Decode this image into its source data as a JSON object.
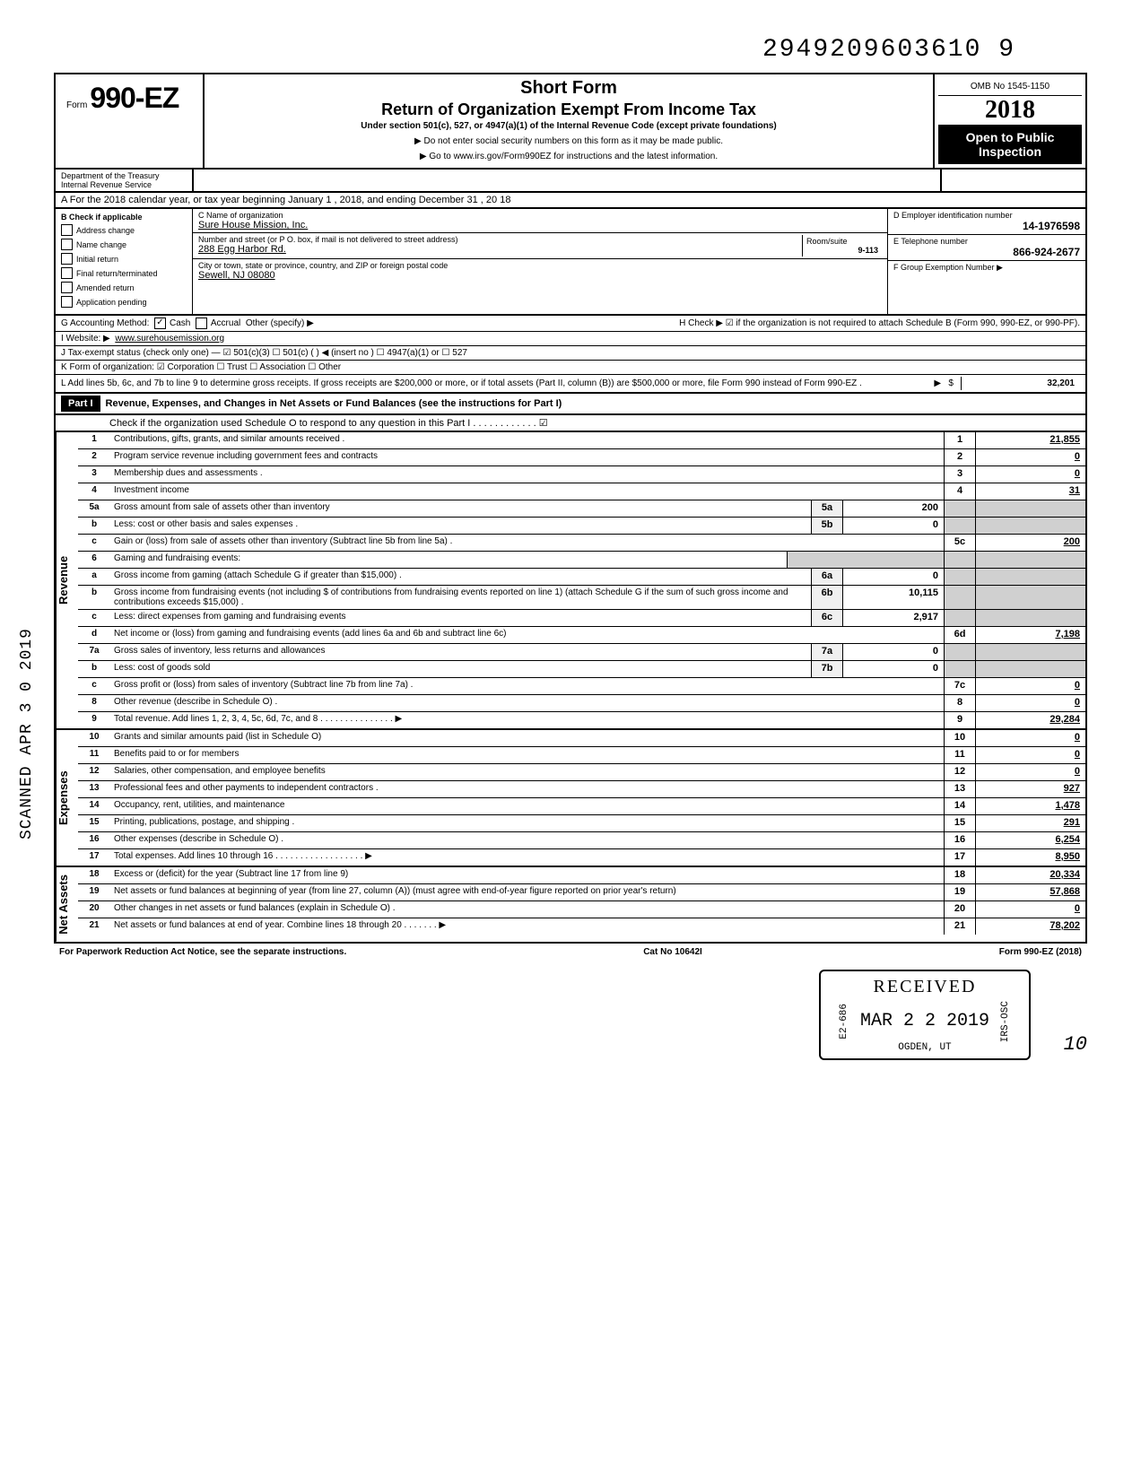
{
  "page_number": "2949209603610  9",
  "form": {
    "prefix": "Form",
    "number": "990-EZ",
    "short_form": "Short Form",
    "title": "Return of Organization Exempt From Income Tax",
    "subtitle": "Under section 501(c), 527, or 4947(a)(1) of the Internal Revenue Code (except private foundations)",
    "note1": "▶ Do not enter social security numbers on this form as it may be made public.",
    "note2": "▶ Go to www.irs.gov/Form990EZ for instructions and the latest information.",
    "omb": "OMB No 1545-1150",
    "year": "2018",
    "public": "Open to Public Inspection",
    "dept": "Department of the Treasury Internal Revenue Service"
  },
  "section_a": "A  For the 2018 calendar year, or tax year beginning           January 1          , 2018, and ending          December 31          , 20   18",
  "col_b": {
    "header": "B  Check if applicable",
    "items": [
      "Address change",
      "Name change",
      "Initial return",
      "Final return/terminated",
      "Amended return",
      "Application pending"
    ]
  },
  "col_c": {
    "name_label": "C  Name of organization",
    "name": "Sure House Mission, Inc.",
    "addr_label": "Number and street (or P O. box, if mail is not delivered to street address)",
    "addr": "288 Egg Harbor Rd.",
    "room_label": "Room/suite",
    "room": "9-113",
    "city_label": "City or town, state or province, country, and ZIP or foreign postal code",
    "city": "Sewell, NJ 08080"
  },
  "col_d": {
    "ein_label": "D Employer identification number",
    "ein": "14-1976598",
    "phone_label": "E  Telephone number",
    "phone": "866-924-2677",
    "group_label": "F  Group Exemption Number ▶"
  },
  "meta": {
    "g": "G  Accounting Method:",
    "g_cash": "Cash",
    "g_accrual": "Accrual",
    "g_other": "Other (specify) ▶",
    "h": "H  Check ▶ ☑ if the organization is not required to attach Schedule B (Form 990, 990-EZ, or 990-PF).",
    "i": "I  Website: ▶",
    "i_val": "www.surehousemission.org",
    "j": "J  Tax-exempt status (check only one) — ☑ 501(c)(3)  ☐ 501(c) (   ) ◀ (insert no )  ☐ 4947(a)(1) or  ☐ 527",
    "k": "K  Form of organization:  ☑ Corporation   ☐ Trust   ☐ Association   ☐ Other",
    "l": "L  Add lines 5b, 6c, and 7b to line 9 to determine gross receipts. If gross receipts are $200,000 or more, or if total assets (Part II, column (B)) are $500,000 or more, file Form 990 instead of Form 990-EZ .",
    "l_amount": "32,201"
  },
  "part1": {
    "label": "Part I",
    "title": "Revenue, Expenses, and Changes in Net Assets or Fund Balances (see the instructions for Part I)",
    "check": "Check if the organization used Schedule O to respond to any question in this Part I . . . . . . . . . . . .  ☑"
  },
  "sections": {
    "revenue": "Revenue",
    "expenses": "Expenses",
    "net_assets": "Net Assets"
  },
  "lines": {
    "1": {
      "n": "1",
      "d": "Contributions, gifts, grants, and similar amounts received .",
      "box": "1",
      "val": "21,855"
    },
    "2": {
      "n": "2",
      "d": "Program service revenue including government fees and contracts",
      "box": "2",
      "val": "0"
    },
    "3": {
      "n": "3",
      "d": "Membership dues and assessments .",
      "box": "3",
      "val": "0"
    },
    "4": {
      "n": "4",
      "d": "Investment income",
      "box": "4",
      "val": "31"
    },
    "5a": {
      "n": "5a",
      "d": "Gross amount from sale of assets other than inventory",
      "sub": "5a",
      "subval": "200"
    },
    "5b": {
      "n": "b",
      "d": "Less: cost or other basis and sales expenses .",
      "sub": "5b",
      "subval": "0"
    },
    "5c": {
      "n": "c",
      "d": "Gain or (loss) from sale of assets other than inventory (Subtract line 5b from line 5a) .",
      "box": "5c",
      "val": "200"
    },
    "6": {
      "n": "6",
      "d": "Gaming and fundraising events:"
    },
    "6a": {
      "n": "a",
      "d": "Gross income from gaming (attach Schedule G if greater than $15,000) .",
      "sub": "6a",
      "subval": "0"
    },
    "6b": {
      "n": "b",
      "d": "Gross income from fundraising events (not including  $             of contributions from fundraising events reported on line 1) (attach Schedule G if the sum of such gross income and contributions exceeds $15,000) .",
      "sub": "6b",
      "subval": "10,115"
    },
    "6c": {
      "n": "c",
      "d": "Less: direct expenses from gaming and fundraising events",
      "sub": "6c",
      "subval": "2,917"
    },
    "6d": {
      "n": "d",
      "d": "Net income or (loss) from gaming and fundraising events (add lines 6a and 6b and subtract line 6c)",
      "box": "6d",
      "val": "7,198"
    },
    "7a": {
      "n": "7a",
      "d": "Gross sales of inventory, less returns and allowances",
      "sub": "7a",
      "subval": "0"
    },
    "7b": {
      "n": "b",
      "d": "Less: cost of goods sold",
      "sub": "7b",
      "subval": "0"
    },
    "7c": {
      "n": "c",
      "d": "Gross profit or (loss) from sales of inventory (Subtract line 7b from line 7a) .",
      "box": "7c",
      "val": "0"
    },
    "8": {
      "n": "8",
      "d": "Other revenue (describe in Schedule O) .",
      "box": "8",
      "val": "0"
    },
    "9": {
      "n": "9",
      "d": "Total revenue. Add lines 1, 2, 3, 4, 5c, 6d, 7c, and 8  . . . . . . . . . . . . . . . ▶",
      "box": "9",
      "val": "29,284"
    },
    "10": {
      "n": "10",
      "d": "Grants and similar amounts paid (list in Schedule O)",
      "box": "10",
      "val": "0"
    },
    "11": {
      "n": "11",
      "d": "Benefits paid to or for members",
      "box": "11",
      "val": "0"
    },
    "12": {
      "n": "12",
      "d": "Salaries, other compensation, and employee benefits",
      "box": "12",
      "val": "0"
    },
    "13": {
      "n": "13",
      "d": "Professional fees and other payments to independent contractors .",
      "box": "13",
      "val": "927"
    },
    "14": {
      "n": "14",
      "d": "Occupancy, rent, utilities, and maintenance",
      "box": "14",
      "val": "1,478"
    },
    "15": {
      "n": "15",
      "d": "Printing, publications, postage, and shipping .",
      "box": "15",
      "val": "291"
    },
    "16": {
      "n": "16",
      "d": "Other expenses (describe in Schedule O) .",
      "box": "16",
      "val": "6,254"
    },
    "17": {
      "n": "17",
      "d": "Total expenses. Add lines 10 through 16  . . . . . . . . . . . . . . . . . . ▶",
      "box": "17",
      "val": "8,950"
    },
    "18": {
      "n": "18",
      "d": "Excess or (deficit) for the year (Subtract line 17 from line 9)",
      "box": "18",
      "val": "20,334"
    },
    "19": {
      "n": "19",
      "d": "Net assets or fund balances at beginning of year (from line 27, column (A)) (must agree with end-of-year figure reported on prior year's return)",
      "box": "19",
      "val": "57,868"
    },
    "20": {
      "n": "20",
      "d": "Other changes in net assets or fund balances (explain in Schedule O) .",
      "box": "20",
      "val": "0"
    },
    "21": {
      "n": "21",
      "d": "Net assets or fund balances at end of year. Combine lines 18 through 20  . . . . . . . ▶",
      "box": "21",
      "val": "78,202"
    }
  },
  "footer": {
    "left": "For Paperwork Reduction Act Notice, see the separate instructions.",
    "cat": "Cat No 10642I",
    "right": "Form 990-EZ (2018)"
  },
  "stamp": {
    "received": "RECEIVED",
    "date": "MAR 2 2 2019",
    "code": "E2-686",
    "irs": "IRS-OSC",
    "ogden": "OGDEN, UT",
    "page": "10"
  },
  "scanned": "SCANNED APR 3 0 2019"
}
